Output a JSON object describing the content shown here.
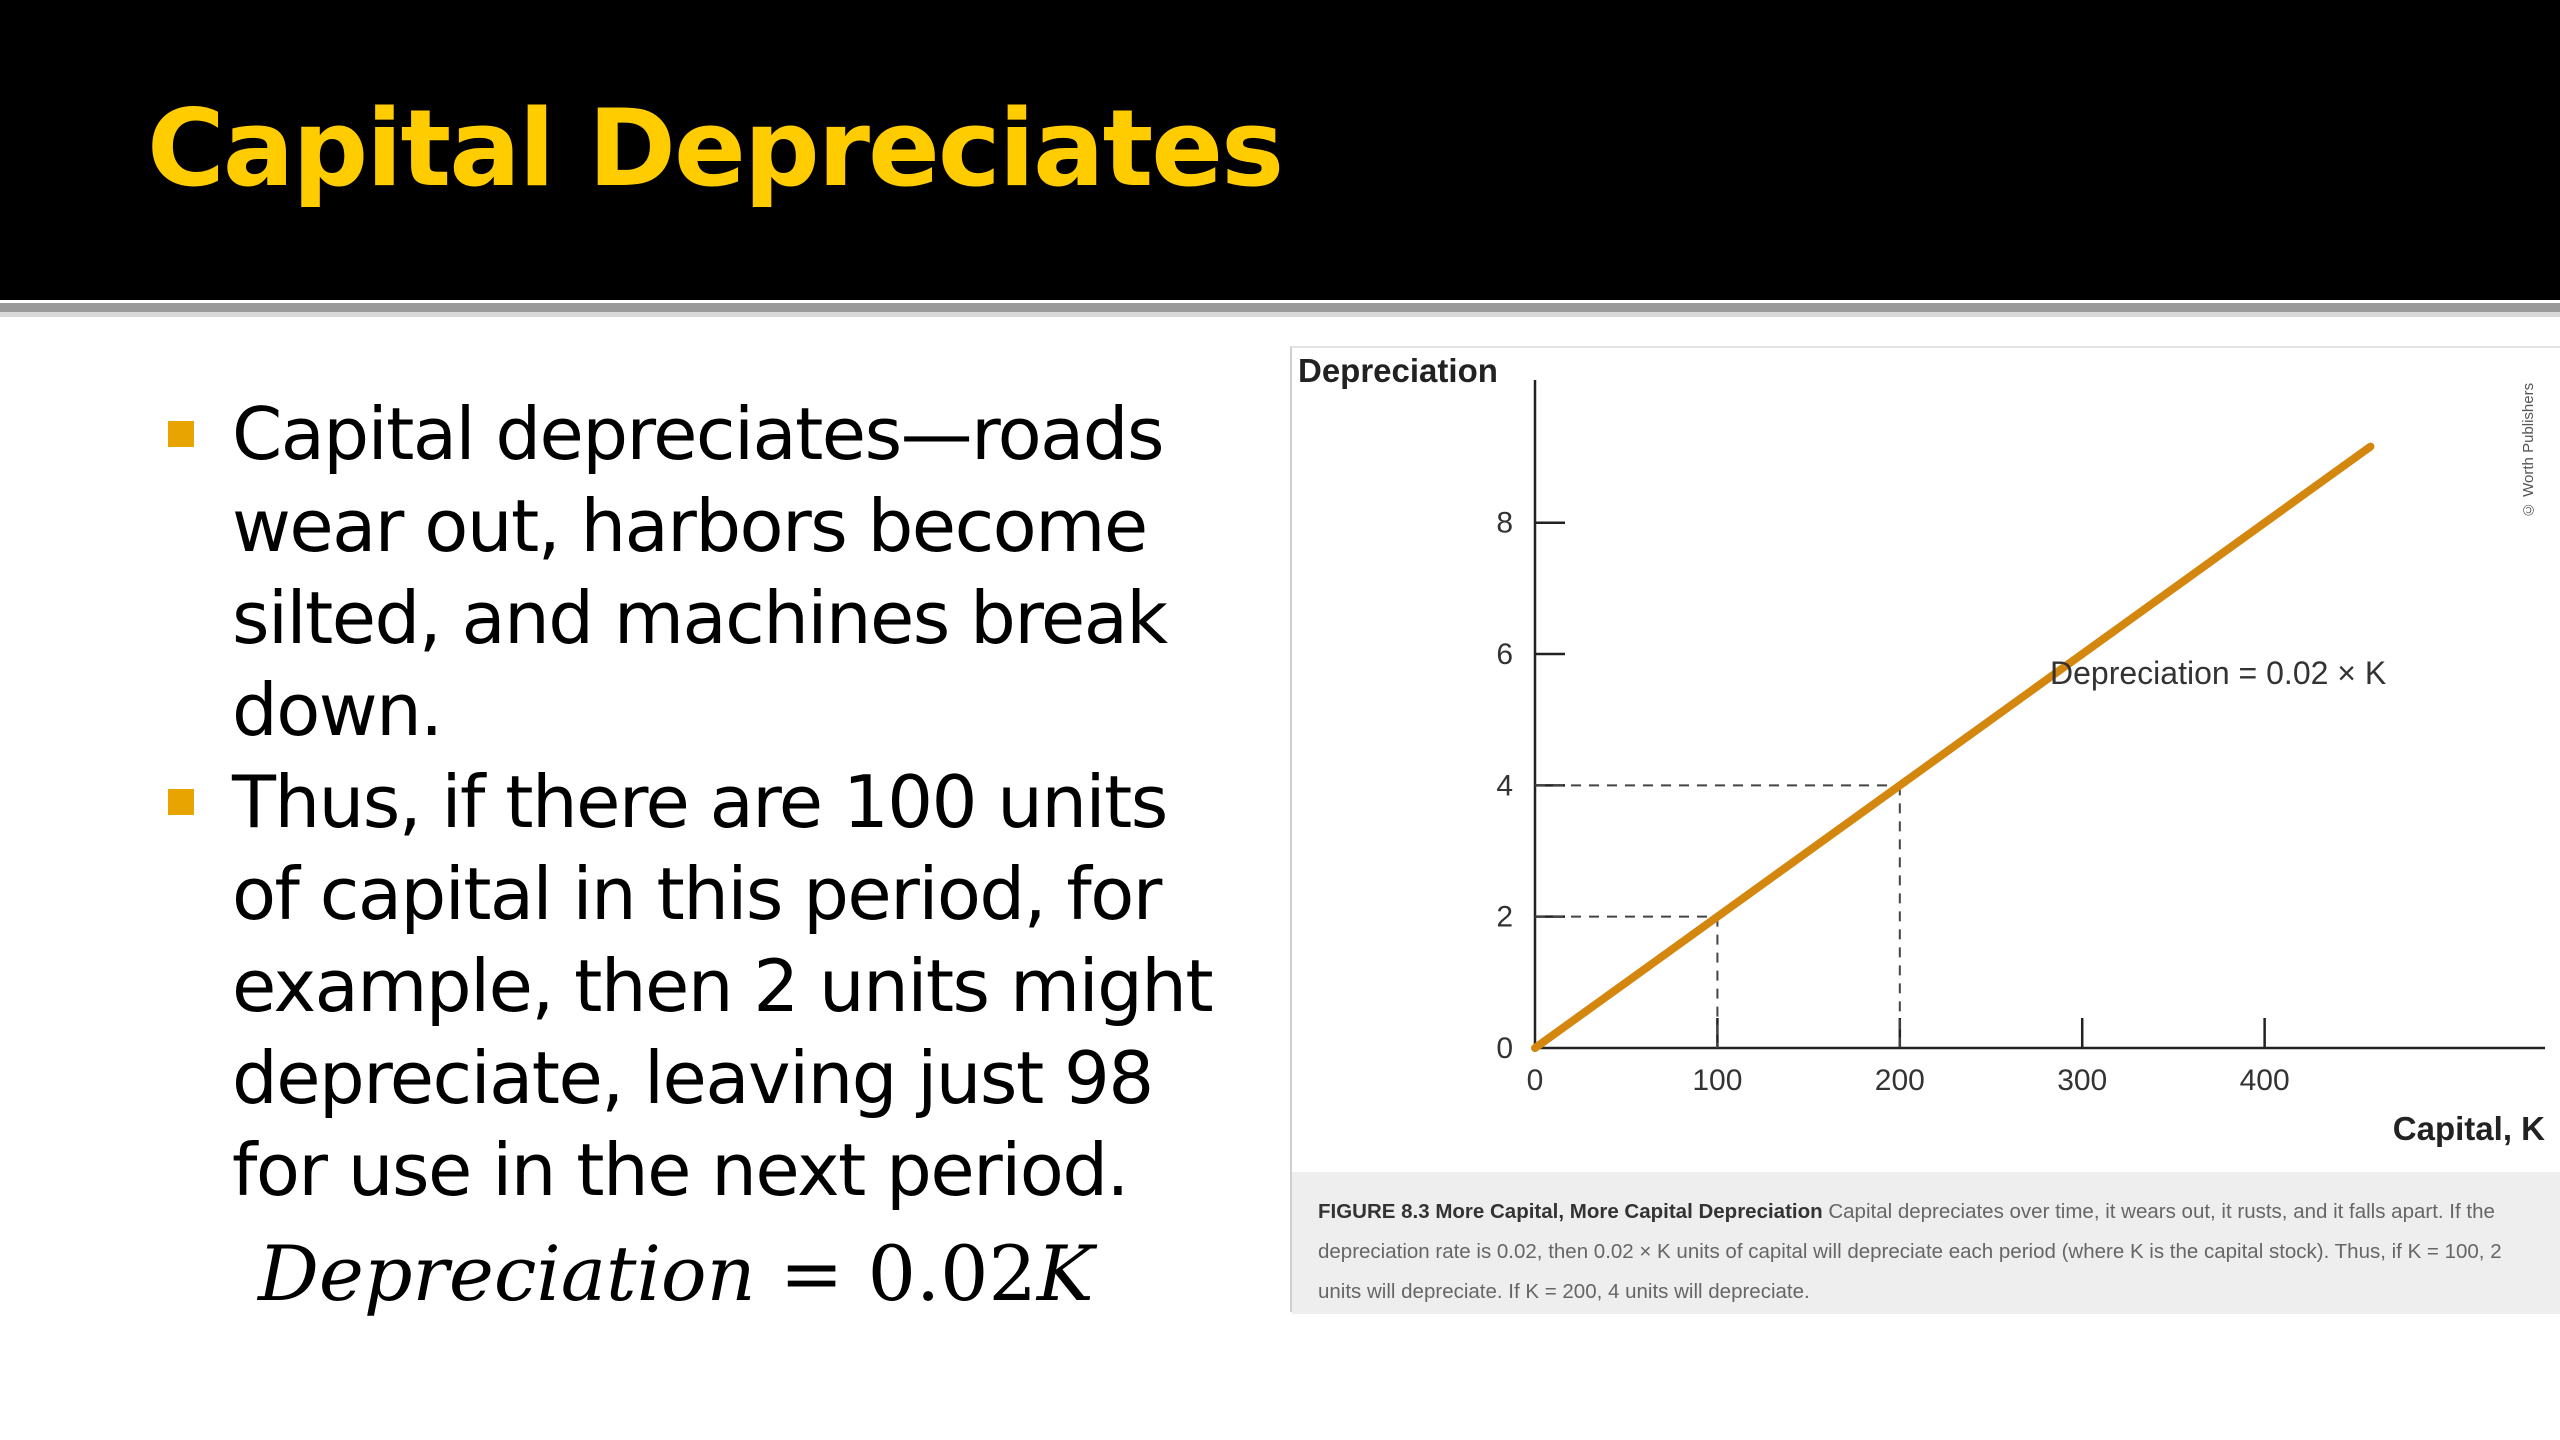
{
  "slide": {
    "title": "Capital Depreciates",
    "title_color": "#FFCC00",
    "bullet_color": "#E8A400",
    "bullets": [
      "Capital depreciates—roads wear out, harbors become silted, and machines break down.",
      "Thus, if there are 100 units of capital in this period, for example, then 2 units might depreciate, leaving just 98 for use in the next period."
    ],
    "formula": {
      "lhs": "Depreciation",
      "eq": " = ",
      "coef": "0.02",
      "var": "K"
    }
  },
  "figure": {
    "credit": "© Worth Publishers",
    "line_label": "Depreciation = 0.02 × K",
    "caption": {
      "head": "FIGURE 8.3 More Capital, More Capital Depreciation",
      "body": " Capital depreciates over time, it wears out, it rusts, and it falls apart. If the depreciation rate is 0.02, then 0.02 × K units of capital will depreciate each period (where K is the capital stock). Thus, if K = 100, 2 units will depreciate. If K = 200, 4 units will depreciate."
    },
    "line_color": "#D4870F"
  },
  "chart_data": {
    "type": "line",
    "ylabel": "Depreciation",
    "xlabel": "Capital, K",
    "x_ticks": [
      0,
      100,
      200,
      300,
      400
    ],
    "y_ticks": [
      0,
      2,
      4,
      6,
      8
    ],
    "xlim": [
      0,
      540
    ],
    "ylim": [
      0,
      9.9
    ],
    "series": [
      {
        "name": "Depreciation = 0.02 × K",
        "x": [
          0,
          458
        ],
        "y": [
          0,
          9.16
        ]
      }
    ],
    "reference_points": [
      {
        "x": 100,
        "y": 2
      },
      {
        "x": 200,
        "y": 4
      }
    ]
  }
}
